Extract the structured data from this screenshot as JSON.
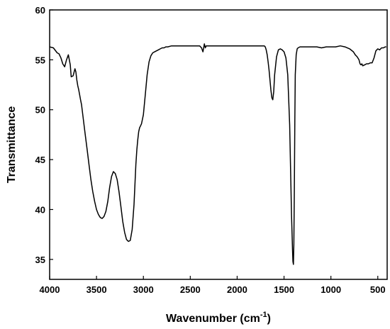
{
  "chart_data": {
    "type": "line",
    "title": "",
    "xlabel": "Wavenumber (cm",
    "xlabel_sup": "-1",
    "xlabel_end": ")",
    "ylabel": "Transmittance",
    "xlim": [
      4000,
      400
    ],
    "ylim": [
      33,
      60
    ],
    "x_reversed": true,
    "grid": false,
    "legend": "none",
    "line_color": "#000000",
    "xticks": [
      4000,
      3500,
      3000,
      2500,
      2000,
      1500,
      1000,
      500
    ],
    "yticks": [
      35,
      40,
      45,
      50,
      55,
      60
    ],
    "series": [
      {
        "x": [
          4000,
          3960,
          3920,
          3900,
          3880,
          3860,
          3840,
          3820,
          3800,
          3780,
          3770,
          3750,
          3730,
          3720,
          3710,
          3700,
          3690,
          3680,
          3670,
          3660,
          3640,
          3620,
          3600,
          3580,
          3560,
          3540,
          3520,
          3500,
          3480,
          3460,
          3440,
          3420,
          3400,
          3380,
          3360,
          3340,
          3320,
          3300,
          3280,
          3260,
          3240,
          3220,
          3200,
          3180,
          3160,
          3140,
          3120,
          3100,
          3090,
          3080,
          3070,
          3060,
          3050,
          3040,
          3030,
          3020,
          3000,
          2980,
          2960,
          2940,
          2920,
          2900,
          2880,
          2860,
          2840,
          2820,
          2800,
          2780,
          2760,
          2740,
          2700,
          2600,
          2500,
          2400,
          2380,
          2365,
          2350,
          2340,
          2330,
          2300,
          2200,
          2100,
          2000,
          1900,
          1800,
          1760,
          1730,
          1710,
          1700,
          1690,
          1680,
          1670,
          1660,
          1650,
          1640,
          1630,
          1620,
          1610,
          1600,
          1580,
          1560,
          1540,
          1520,
          1500,
          1480,
          1460,
          1440,
          1430,
          1420,
          1410,
          1405,
          1400,
          1395,
          1390,
          1385,
          1380,
          1370,
          1360,
          1350,
          1330,
          1300,
          1250,
          1200,
          1150,
          1100,
          1050,
          1000,
          950,
          900,
          850,
          800,
          760,
          740,
          720,
          700,
          690,
          680,
          670,
          660,
          640,
          620,
          600,
          580,
          560,
          540,
          520,
          500,
          480,
          460,
          440,
          420,
          410
        ],
        "y": [
          56.3,
          56.2,
          55.7,
          55.6,
          55.2,
          54.6,
          54.3,
          55.0,
          55.5,
          54.5,
          53.3,
          53.4,
          54.1,
          53.8,
          53.0,
          52.4,
          52.0,
          51.5,
          51.0,
          50.5,
          49.0,
          47.5,
          46.0,
          44.5,
          43.0,
          41.8,
          40.8,
          40.0,
          39.5,
          39.2,
          39.1,
          39.3,
          39.8,
          40.8,
          42.2,
          43.3,
          43.8,
          43.6,
          43.0,
          41.8,
          40.3,
          38.8,
          37.7,
          37.0,
          36.8,
          36.9,
          38.0,
          40.5,
          42.5,
          44.5,
          46.0,
          47.0,
          47.8,
          48.2,
          48.4,
          48.6,
          49.5,
          51.5,
          53.5,
          54.8,
          55.4,
          55.7,
          55.8,
          55.9,
          56.0,
          56.1,
          56.2,
          56.2,
          56.3,
          56.3,
          56.4,
          56.4,
          56.4,
          56.4,
          56.2,
          55.8,
          56.6,
          56.2,
          56.4,
          56.4,
          56.4,
          56.4,
          56.4,
          56.4,
          56.4,
          56.4,
          56.4,
          56.4,
          56.3,
          56.0,
          55.5,
          54.8,
          54.0,
          53.0,
          52.0,
          51.2,
          51.0,
          51.8,
          53.5,
          55.3,
          56.0,
          56.1,
          56.0,
          55.8,
          55.2,
          53.5,
          48.5,
          44.0,
          39.5,
          36.0,
          34.8,
          34.5,
          36.5,
          42.0,
          49.0,
          53.5,
          55.5,
          56.1,
          56.2,
          56.3,
          56.3,
          56.3,
          56.3,
          56.3,
          56.2,
          56.3,
          56.3,
          56.3,
          56.4,
          56.3,
          56.1,
          55.8,
          55.5,
          55.3,
          55.0,
          54.6,
          54.5,
          54.6,
          54.4,
          54.5,
          54.6,
          54.6,
          54.7,
          54.7,
          55.2,
          55.9,
          56.1,
          56.0,
          56.2,
          56.2,
          56.3,
          56.3
        ]
      }
    ]
  }
}
